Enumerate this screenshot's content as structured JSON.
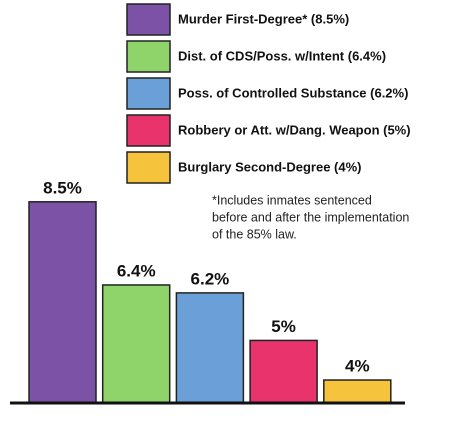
{
  "chart_data": {
    "type": "bar",
    "categories": [
      "Murder First-Degree* (8.5%)",
      "Dist. of CDS/Poss. w/Intent (6.4%)",
      "Poss. of Controlled Substance (6.2%)",
      "Robbery or Att. w/Dang. Weapon (5%)",
      "Burglary Second-Degree (4%)"
    ],
    "values": [
      8.5,
      6.4,
      6.2,
      5,
      4
    ],
    "value_labels": [
      "8.5%",
      "6.4%",
      "6.2%",
      "5%",
      "4%"
    ],
    "colors": [
      "#7b52a5",
      "#8fd46a",
      "#6a9fd8",
      "#e8336d",
      "#f5c43c"
    ],
    "ylim": [
      3.42,
      9
    ],
    "annotation": [
      "*Includes inmates sentenced",
      "before and after the implementation",
      "of the 85% law."
    ]
  }
}
